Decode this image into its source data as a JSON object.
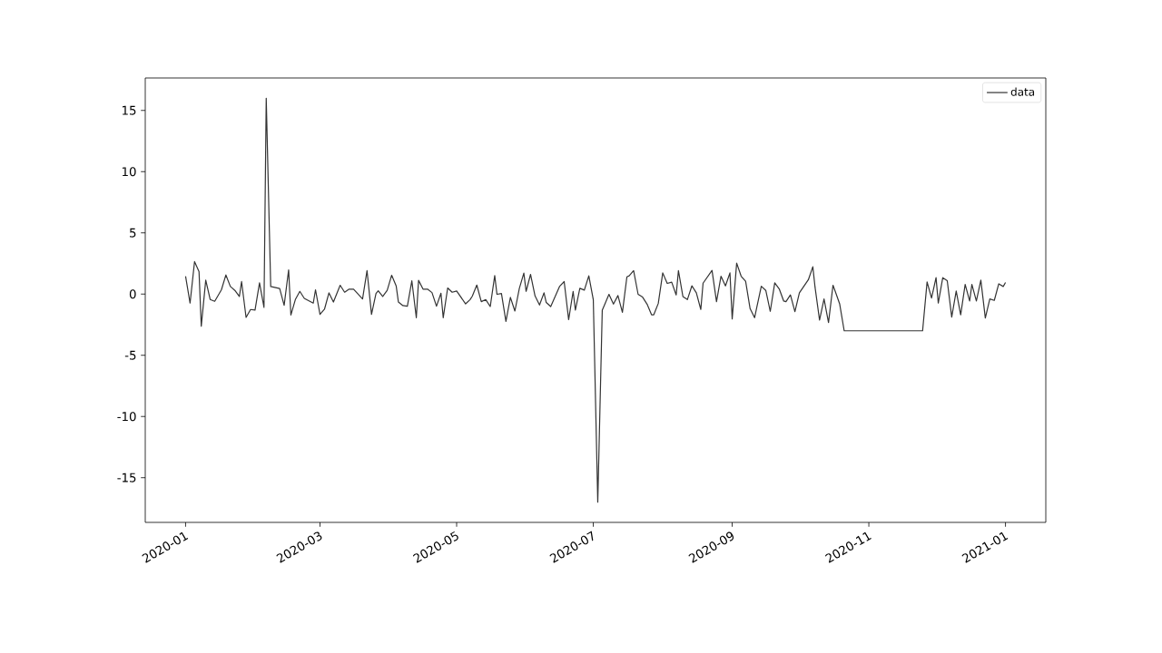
{
  "chart_data": {
    "type": "line",
    "x": [
      "2020-01-01",
      "2020-01-03",
      "2020-01-05",
      "2020-01-07",
      "2020-01-08",
      "2020-01-10",
      "2020-01-12",
      "2020-01-14",
      "2020-01-17",
      "2020-01-19",
      "2020-01-21",
      "2020-01-23",
      "2020-01-25",
      "2020-01-26",
      "2020-01-28",
      "2020-01-30",
      "2020-02-01",
      "2020-02-03",
      "2020-02-05",
      "2020-02-06",
      "2020-02-08",
      "2020-02-12",
      "2020-02-14",
      "2020-02-16",
      "2020-02-17",
      "2020-02-19",
      "2020-02-21",
      "2020-02-23",
      "2020-02-27",
      "2020-02-28",
      "2020-03-01",
      "2020-03-03",
      "2020-03-05",
      "2020-03-07",
      "2020-03-10",
      "2020-03-12",
      "2020-03-14",
      "2020-03-16",
      "2020-03-20",
      "2020-03-22",
      "2020-03-24",
      "2020-03-26",
      "2020-03-27",
      "2020-03-29",
      "2020-03-31",
      "2020-04-02",
      "2020-04-04",
      "2020-04-05",
      "2020-04-07",
      "2020-04-09",
      "2020-04-11",
      "2020-04-13",
      "2020-04-14",
      "2020-04-16",
      "2020-04-18",
      "2020-04-20",
      "2020-04-22",
      "2020-04-24",
      "2020-04-25",
      "2020-04-27",
      "2020-04-29",
      "2020-05-01",
      "2020-05-05",
      "2020-05-07",
      "2020-05-08",
      "2020-05-10",
      "2020-05-12",
      "2020-05-14",
      "2020-05-16",
      "2020-05-18",
      "2020-05-19",
      "2020-05-21",
      "2020-05-23",
      "2020-05-25",
      "2020-05-27",
      "2020-05-29",
      "2020-05-31",
      "2020-06-01",
      "2020-06-03",
      "2020-06-05",
      "2020-06-07",
      "2020-06-09",
      "2020-06-10",
      "2020-06-12",
      "2020-06-16",
      "2020-06-18",
      "2020-06-20",
      "2020-06-22",
      "2020-06-23",
      "2020-06-25",
      "2020-06-27",
      "2020-06-29",
      "2020-07-01",
      "2020-07-03",
      "2020-07-05",
      "2020-07-06",
      "2020-07-08",
      "2020-07-10",
      "2020-07-12",
      "2020-07-14",
      "2020-07-16",
      "2020-07-17",
      "2020-07-19",
      "2020-07-21",
      "2020-07-23",
      "2020-07-25",
      "2020-07-27",
      "2020-07-28",
      "2020-07-30",
      "2020-08-01",
      "2020-08-03",
      "2020-08-05",
      "2020-08-07",
      "2020-08-08",
      "2020-08-10",
      "2020-08-12",
      "2020-08-14",
      "2020-08-16",
      "2020-08-18",
      "2020-08-19",
      "2020-08-23",
      "2020-08-25",
      "2020-08-27",
      "2020-08-29",
      "2020-08-31",
      "2020-09-01",
      "2020-09-03",
      "2020-09-05",
      "2020-09-07",
      "2020-09-09",
      "2020-09-11",
      "2020-09-12",
      "2020-09-14",
      "2020-09-16",
      "2020-09-18",
      "2020-09-20",
      "2020-09-22",
      "2020-09-24",
      "2020-09-25",
      "2020-09-27",
      "2020-09-29",
      "2020-10-01",
      "2020-10-05",
      "2020-10-07",
      "2020-10-08",
      "2020-10-10",
      "2020-10-12",
      "2020-10-14",
      "2020-10-16",
      "2020-10-17",
      "2020-10-19",
      "2020-10-21",
      "2020-11-25",
      "2020-11-27",
      "2020-11-29",
      "2020-12-01",
      "2020-12-02",
      "2020-12-04",
      "2020-12-06",
      "2020-12-08",
      "2020-12-10",
      "2020-12-12",
      "2020-12-14",
      "2020-12-16",
      "2020-12-17",
      "2020-12-19",
      "2020-12-21",
      "2020-12-23",
      "2020-12-25",
      "2020-12-27",
      "2020-12-29",
      "2020-12-31",
      "2021-01-01"
    ],
    "series": [
      {
        "name": "data",
        "color": "#333333",
        "values": [
          1.46,
          -0.74,
          2.65,
          1.84,
          -2.62,
          1.14,
          -0.45,
          -0.59,
          0.35,
          1.56,
          0.62,
          0.3,
          -0.2,
          1.02,
          -1.91,
          -1.26,
          -1.31,
          0.92,
          -1.09,
          16.0,
          0.62,
          0.45,
          -0.92,
          1.98,
          -1.71,
          -0.45,
          0.22,
          -0.35,
          -0.74,
          0.35,
          -1.66,
          -1.24,
          0.1,
          -0.65,
          0.72,
          0.15,
          0.4,
          0.4,
          -0.4,
          1.91,
          -1.66,
          0.05,
          0.27,
          -0.2,
          0.3,
          1.54,
          0.67,
          -0.65,
          -0.94,
          -0.99,
          1.09,
          -1.93,
          1.12,
          0.4,
          0.4,
          0.12,
          -0.99,
          0.07,
          -1.93,
          0.5,
          0.15,
          0.25,
          -0.8,
          -0.45,
          -0.17,
          0.74,
          -0.62,
          -0.45,
          -1.02,
          1.51,
          -0.02,
          0.05,
          -2.23,
          -0.27,
          -1.39,
          0.47,
          1.71,
          0.22,
          1.61,
          -0.15,
          -0.89,
          0.1,
          -0.69,
          -1.02,
          0.64,
          1.02,
          -2.08,
          0.22,
          -1.31,
          0.47,
          0.32,
          1.49,
          -0.45,
          -17.0,
          -1.31,
          -0.89,
          -0.02,
          -0.82,
          -0.12,
          -1.49,
          1.41,
          1.49,
          1.91,
          -0.02,
          -0.25,
          -0.82,
          -1.69,
          -1.69,
          -0.77,
          1.73,
          0.87,
          0.97,
          -0.07,
          1.91,
          -0.2,
          -0.45,
          0.67,
          0.1,
          -1.26,
          0.89,
          1.93,
          -0.62,
          1.46,
          0.67,
          1.73,
          -2.03,
          2.53,
          1.46,
          1.04,
          -1.19,
          -1.93,
          -1.06,
          0.64,
          0.3,
          -1.41,
          0.92,
          0.42,
          -0.57,
          -0.62,
          -0.07,
          -1.44,
          0.1,
          1.17,
          2.23,
          0.54,
          -2.13,
          -0.4,
          -2.33,
          0.72,
          0.22,
          -0.82,
          -3.0,
          -3.0,
          0.99,
          -0.32,
          1.34,
          -0.74,
          1.34,
          1.09,
          -1.88,
          0.25,
          -1.69,
          0.79,
          -0.57,
          0.79,
          -0.57,
          1.14,
          -1.96,
          -0.4,
          -0.52,
          0.84,
          0.62,
          0.94
        ]
      }
    ],
    "xlim": [
      "2019-12-14",
      "2021-01-19"
    ],
    "xticks": [
      "2020-01",
      "2020-03",
      "2020-05",
      "2020-07",
      "2020-09",
      "2020-11",
      "2021-01"
    ],
    "ylim": [
      -18.65,
      17.65
    ],
    "yticks": [
      -15,
      -10,
      -5,
      0,
      5,
      10,
      15
    ],
    "legend": "top right",
    "line_style": "solid"
  }
}
